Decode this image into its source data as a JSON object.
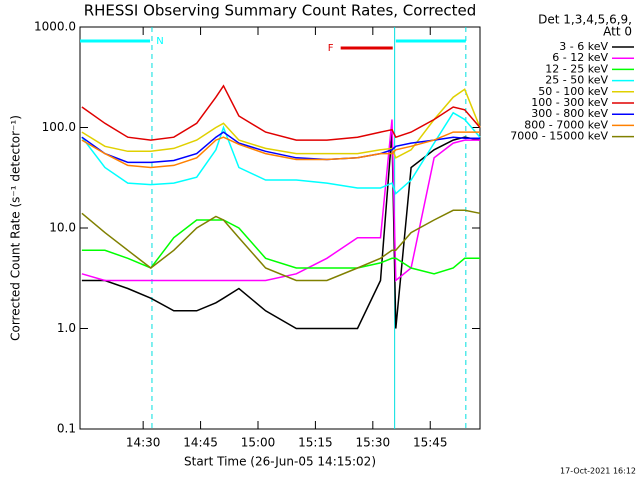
{
  "chart_data": {
    "type": "line",
    "title": "RHESSI Observing Summary Count Rates, Corrected",
    "x_label": "Start Time (26-Jun-05 14:15:02)",
    "y_label": "Corrected Count Rate (s⁻¹ detector⁻¹)",
    "legend_title": [
      "Det 1,3,4,5,6,9,",
      "Att 0"
    ],
    "footer": "17-Oct-2021 16:12",
    "log_y": true,
    "xlim": [
      13.5,
      118
    ],
    "xticks": [
      {
        "value": 30,
        "label": "14:30"
      },
      {
        "value": 45,
        "label": "14:45"
      },
      {
        "value": 60,
        "label": "15:00"
      },
      {
        "value": 75,
        "label": "15:15"
      },
      {
        "value": 90,
        "label": "15:30"
      },
      {
        "value": 105,
        "label": "15:45"
      }
    ],
    "ylim": [
      0.1,
      1000
    ],
    "yticks": [
      {
        "value": 1000,
        "label": "1000.0"
      },
      {
        "value": 100,
        "label": "100.0"
      },
      {
        "value": 10,
        "label": "10.0"
      },
      {
        "value": 1,
        "label": "1.0"
      },
      0.1
    ],
    "flag_bars": [
      {
        "label": "N",
        "start": 13.5,
        "end": 31.8,
        "color": "#00ffff"
      },
      {
        "label": "F",
        "start": 81.6,
        "end": 95.2,
        "color": "#e00000"
      },
      {
        "start": 96.0,
        "end": 114.3,
        "color": "#00ffff"
      }
    ],
    "vlines": [
      {
        "x": 32.3,
        "dashed": true
      },
      {
        "x": 95.7,
        "dashed": false
      },
      {
        "x": 114.3,
        "dashed": true
      }
    ],
    "x": [
      14,
      20,
      26,
      32,
      38,
      44,
      49,
      51,
      55,
      62,
      70,
      78,
      86,
      92,
      95,
      96,
      100,
      106,
      111,
      114,
      118
    ],
    "series": [
      {
        "name": "3 - 6 keV",
        "color": "#000000",
        "values": [
          3,
          3,
          2.5,
          2,
          1.5,
          1.5,
          1.8,
          2,
          2.5,
          1.5,
          1,
          1,
          1,
          3,
          90,
          1,
          40,
          60,
          75,
          80,
          75
        ]
      },
      {
        "name": "6 - 12 keV",
        "color": "#ff00ff",
        "values": [
          3.5,
          3,
          3,
          3,
          3,
          3,
          3,
          3,
          3,
          3,
          3.5,
          5,
          8,
          8,
          120,
          3,
          4,
          50,
          70,
          75,
          75
        ]
      },
      {
        "name": "12 - 25 keV",
        "color": "#00ff00",
        "values": [
          6,
          6,
          5,
          4,
          8,
          12,
          12,
          12,
          10,
          5,
          4,
          4,
          4,
          4.5,
          5,
          5,
          4,
          3.5,
          4,
          5,
          5
        ]
      },
      {
        "name": "25 - 50 keV",
        "color": "#00ffff",
        "values": [
          80,
          40,
          28,
          27,
          28,
          32,
          60,
          100,
          40,
          30,
          30,
          28,
          25,
          25,
          28,
          22,
          30,
          70,
          140,
          120,
          80
        ]
      },
      {
        "name": "50 - 100 keV",
        "color": "#e0d000",
        "values": [
          90,
          65,
          58,
          58,
          62,
          75,
          100,
          110,
          75,
          62,
          55,
          55,
          55,
          60,
          62,
          50,
          60,
          120,
          200,
          240,
          100
        ]
      },
      {
        "name": "100 - 300 keV",
        "color": "#e00000",
        "values": [
          160,
          110,
          80,
          75,
          80,
          110,
          200,
          260,
          130,
          90,
          75,
          75,
          80,
          90,
          95,
          80,
          90,
          120,
          160,
          150,
          100
        ]
      },
      {
        "name": "300 - 800 keV",
        "color": "#0000ff",
        "values": [
          80,
          55,
          45,
          45,
          47,
          55,
          80,
          90,
          70,
          58,
          50,
          48,
          50,
          55,
          60,
          65,
          70,
          75,
          80,
          78,
          78
        ]
      },
      {
        "name": "800 - 7000 keV",
        "color": "#ff8000",
        "values": [
          75,
          55,
          42,
          40,
          42,
          50,
          75,
          80,
          68,
          55,
          48,
          48,
          50,
          55,
          55,
          60,
          65,
          75,
          90,
          90,
          90
        ]
      },
      {
        "name": "7000 - 15000 keV",
        "color": "#808000",
        "values": [
          14,
          9,
          6,
          4,
          6,
          10,
          13,
          12,
          8,
          4,
          3,
          3,
          4,
          5,
          6,
          6,
          9,
          12,
          15,
          15,
          14
        ]
      }
    ]
  }
}
